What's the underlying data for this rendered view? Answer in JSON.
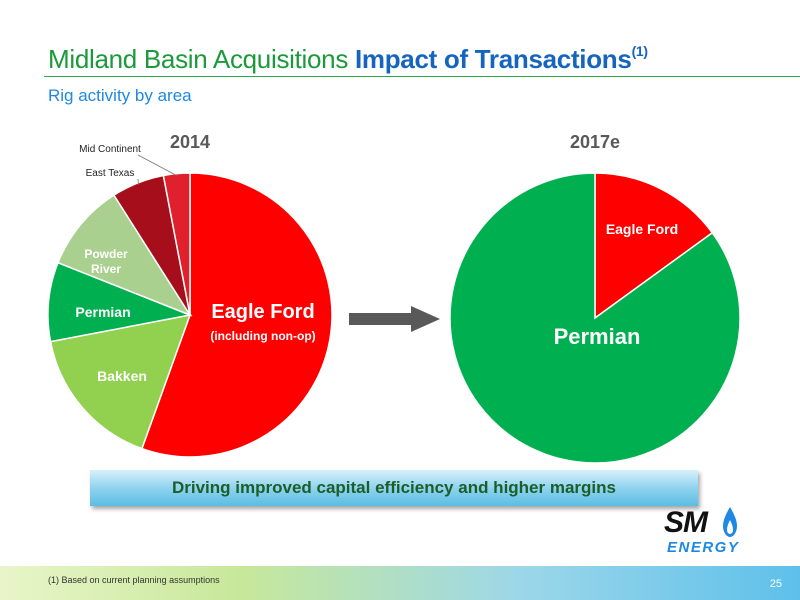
{
  "title": {
    "part1": "Midland Basin Acquisitions ",
    "part2": "Impact of Transactions",
    "superscript": "(1)"
  },
  "subtitle": "Rig activity by area",
  "chart_data": [
    {
      "type": "pie",
      "title": "2014",
      "slices": [
        {
          "label": "Eagle Ford",
          "sublabel": "(including non-op)",
          "value": 55.5,
          "color": "#ff0000"
        },
        {
          "label": "Bakken",
          "value": 16.5,
          "color": "#92d050"
        },
        {
          "label": "Permian",
          "value": 9,
          "color": "#00b050"
        },
        {
          "label": "Powder River",
          "value": 10,
          "color": "#a9d08e"
        },
        {
          "label": "East Texas",
          "value": 6,
          "color": "#a50e1a"
        },
        {
          "label": "Mid Continent",
          "value": 3,
          "color": "#e0202c"
        }
      ]
    },
    {
      "type": "pie",
      "title": "2017e",
      "slices": [
        {
          "label": "Eagle Ford",
          "value": 15,
          "color": "#ff0000"
        },
        {
          "label": "Permian",
          "value": 85,
          "color": "#00b050"
        }
      ]
    }
  ],
  "banner": "Driving improved capital efficiency and higher margins",
  "logo": {
    "line1": "SM",
    "line2": "ENERGY"
  },
  "footnote": "(1)   Based on current planning assumptions",
  "page_number": "25"
}
